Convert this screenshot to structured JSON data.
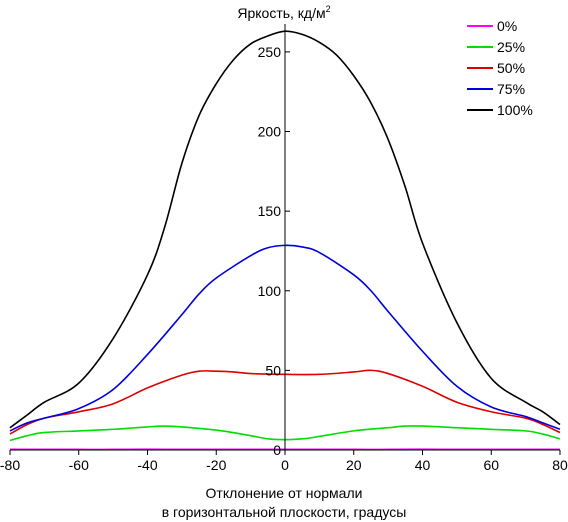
{
  "chart_data": {
    "type": "line",
    "title": "Яркость, кд/м",
    "title_sup": "2",
    "xlabel_line1": "Отклонение от нормали",
    "xlabel_line2": "в горизонтальной плоскости, градусы",
    "xlim": [
      -80,
      80
    ],
    "ylim": [
      0,
      265
    ],
    "x_ticks": [
      -80,
      -60,
      -40,
      -20,
      0,
      20,
      40,
      60,
      80
    ],
    "y_ticks": [
      0,
      50,
      100,
      150,
      200,
      250
    ],
    "legend_position": "top-right",
    "series": [
      {
        "name": "0%",
        "color": "#ff00ff",
        "points": [
          [
            -80,
            0.4
          ],
          [
            -70,
            0.4
          ],
          [
            -60,
            0.4
          ],
          [
            -50,
            0.4
          ],
          [
            -40,
            0.5
          ],
          [
            -30,
            0.4
          ],
          [
            -20,
            0.4
          ],
          [
            -10,
            0.4
          ],
          [
            0,
            0.4
          ],
          [
            10,
            0.4
          ],
          [
            20,
            0.4
          ],
          [
            30,
            0.4
          ],
          [
            40,
            0.5
          ],
          [
            50,
            0.4
          ],
          [
            60,
            0.4
          ],
          [
            70,
            0.4
          ],
          [
            80,
            0.4
          ]
        ]
      },
      {
        "name": "25%",
        "color": "#00dd00",
        "points": [
          [
            -80,
            6
          ],
          [
            -75,
            9
          ],
          [
            -70,
            11
          ],
          [
            -60,
            12
          ],
          [
            -50,
            13
          ],
          [
            -40,
            14.5
          ],
          [
            -35,
            15
          ],
          [
            -30,
            14.5
          ],
          [
            -20,
            12.5
          ],
          [
            -10,
            9
          ],
          [
            -5,
            7
          ],
          [
            0,
            6.5
          ],
          [
            5,
            7
          ],
          [
            10,
            8.5
          ],
          [
            20,
            12
          ],
          [
            30,
            14
          ],
          [
            35,
            15
          ],
          [
            40,
            15
          ],
          [
            50,
            14
          ],
          [
            60,
            13
          ],
          [
            70,
            12
          ],
          [
            75,
            10
          ],
          [
            80,
            7
          ]
        ]
      },
      {
        "name": "50%",
        "color": "#dd0000",
        "points": [
          [
            -80,
            10
          ],
          [
            -75,
            16
          ],
          [
            -70,
            20
          ],
          [
            -60,
            24
          ],
          [
            -50,
            29
          ],
          [
            -40,
            39
          ],
          [
            -30,
            47
          ],
          [
            -25,
            49.5
          ],
          [
            -20,
            49.5
          ],
          [
            -15,
            49
          ],
          [
            -10,
            48
          ],
          [
            0,
            47.5
          ],
          [
            10,
            47.5
          ],
          [
            20,
            49
          ],
          [
            25,
            50
          ],
          [
            30,
            48
          ],
          [
            40,
            40
          ],
          [
            50,
            30
          ],
          [
            60,
            24
          ],
          [
            70,
            20
          ],
          [
            75,
            16
          ],
          [
            80,
            11
          ]
        ]
      },
      {
        "name": "75%",
        "color": "#0000dd",
        "points": [
          [
            -80,
            12
          ],
          [
            -75,
            17
          ],
          [
            -70,
            20
          ],
          [
            -60,
            26
          ],
          [
            -50,
            38
          ],
          [
            -40,
            60
          ],
          [
            -30,
            85
          ],
          [
            -25,
            98
          ],
          [
            -20,
            108
          ],
          [
            -10,
            122
          ],
          [
            -5,
            127
          ],
          [
            0,
            128.5
          ],
          [
            5,
            127.5
          ],
          [
            10,
            124
          ],
          [
            20,
            110
          ],
          [
            25,
            100
          ],
          [
            30,
            87
          ],
          [
            40,
            62
          ],
          [
            50,
            40
          ],
          [
            60,
            27
          ],
          [
            70,
            21
          ],
          [
            75,
            17
          ],
          [
            80,
            13
          ]
        ]
      },
      {
        "name": "100%",
        "color": "#000000",
        "points": [
          [
            -80,
            14
          ],
          [
            -75,
            22
          ],
          [
            -70,
            30
          ],
          [
            -60,
            42
          ],
          [
            -50,
            70
          ],
          [
            -40,
            110
          ],
          [
            -35,
            140
          ],
          [
            -30,
            180
          ],
          [
            -25,
            210
          ],
          [
            -20,
            230
          ],
          [
            -15,
            245
          ],
          [
            -10,
            255
          ],
          [
            -5,
            260
          ],
          [
            0,
            263
          ],
          [
            5,
            261
          ],
          [
            10,
            256
          ],
          [
            15,
            248
          ],
          [
            20,
            235
          ],
          [
            25,
            218
          ],
          [
            30,
            195
          ],
          [
            35,
            165
          ],
          [
            40,
            130
          ],
          [
            50,
            80
          ],
          [
            60,
            45
          ],
          [
            70,
            30
          ],
          [
            75,
            24
          ],
          [
            80,
            16
          ]
        ]
      }
    ]
  }
}
